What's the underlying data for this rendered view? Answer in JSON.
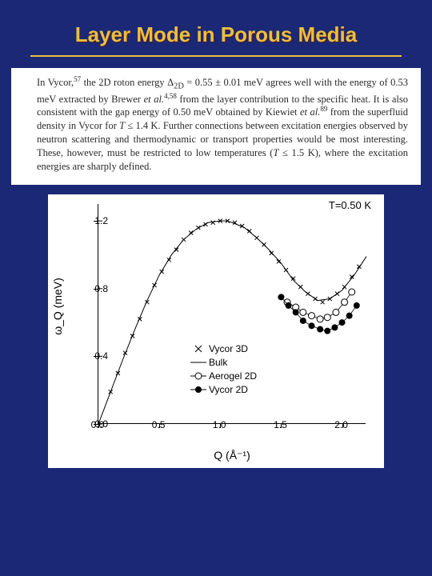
{
  "title": "Layer Mode in Porous Media",
  "paragraph_html": "In Vycor,<sup>57</sup> the 2D roton energy &Delta;<sub>2D</sub> = 0.55 &plusmn; 0.01 meV agrees well with the energy of 0.53 meV extracted by Brewer <i>et al.</i><sup>4,58</sup> from the layer contribution to the specific heat. It is also consistent with the gap energy of 0.50 meV obtained by Kiewiet <i>et al.</i><sup>89</sup> from the superfluid density in Vycor for <i>T</i> &le; 1.4 K. Further connections between excitation energies observed by neutron scattering and thermodynamic or transport properties would be most interesting. These, however, must be restricted to low temperatures (<i>T</i> &le; 1.5 K), where the excitation energies are sharply defined.",
  "chart": {
    "type": "scatter+line",
    "temp_label": "T=0.50 K",
    "xlabel": "Q  (Å⁻¹)",
    "ylabel": "ω_Q  (meV)",
    "xlim": [
      0.0,
      2.2
    ],
    "ylim": [
      0.0,
      1.3
    ],
    "xticks": [
      0.0,
      0.5,
      1.0,
      1.5,
      2.0
    ],
    "yticks": [
      0.0,
      0.4,
      0.8,
      1.2
    ],
    "background_color": "#ffffff",
    "axis_color": "#000000",
    "tick_fontsize": 12,
    "label_fontsize": 14,
    "legend": {
      "position": "lower-right-inner",
      "entries": [
        {
          "marker": "x",
          "label": "Vycor 3D"
        },
        {
          "marker": "line",
          "label": "Bulk"
        },
        {
          "marker": "open-circle",
          "label": "Aerogel 2D"
        },
        {
          "marker": "filled-circle",
          "label": "Vycor 2D"
        }
      ]
    },
    "series": {
      "bulk_line": {
        "style": "line",
        "color": "#000000",
        "width": 1.0,
        "points": [
          [
            0.0,
            0.0
          ],
          [
            0.1,
            0.19
          ],
          [
            0.2,
            0.38
          ],
          [
            0.3,
            0.56
          ],
          [
            0.4,
            0.73
          ],
          [
            0.5,
            0.88
          ],
          [
            0.6,
            1.0
          ],
          [
            0.7,
            1.09
          ],
          [
            0.8,
            1.15
          ],
          [
            0.9,
            1.19
          ],
          [
            1.0,
            1.2
          ],
          [
            1.05,
            1.2
          ],
          [
            1.1,
            1.19
          ],
          [
            1.2,
            1.16
          ],
          [
            1.3,
            1.1
          ],
          [
            1.4,
            1.03
          ],
          [
            1.5,
            0.95
          ],
          [
            1.6,
            0.85
          ],
          [
            1.7,
            0.78
          ],
          [
            1.8,
            0.73
          ],
          [
            1.9,
            0.74
          ],
          [
            2.0,
            0.79
          ],
          [
            2.1,
            0.88
          ],
          [
            2.2,
            0.99
          ]
        ]
      },
      "vycor3d": {
        "style": "x",
        "color": "#000000",
        "size": 5,
        "points": [
          [
            0.1,
            0.19
          ],
          [
            0.16,
            0.3
          ],
          [
            0.22,
            0.42
          ],
          [
            0.28,
            0.52
          ],
          [
            0.34,
            0.62
          ],
          [
            0.4,
            0.72
          ],
          [
            0.46,
            0.82
          ],
          [
            0.52,
            0.9
          ],
          [
            0.58,
            0.97
          ],
          [
            0.64,
            1.03
          ],
          [
            0.7,
            1.09
          ],
          [
            0.76,
            1.13
          ],
          [
            0.82,
            1.16
          ],
          [
            0.88,
            1.18
          ],
          [
            0.94,
            1.19
          ],
          [
            1.0,
            1.2
          ],
          [
            1.06,
            1.2
          ],
          [
            1.12,
            1.19
          ],
          [
            1.18,
            1.17
          ],
          [
            1.24,
            1.14
          ],
          [
            1.3,
            1.1
          ],
          [
            1.36,
            1.06
          ],
          [
            1.42,
            1.01
          ],
          [
            1.48,
            0.96
          ],
          [
            1.54,
            0.91
          ],
          [
            1.6,
            0.86
          ],
          [
            1.66,
            0.81
          ],
          [
            1.72,
            0.77
          ],
          [
            1.78,
            0.74
          ],
          [
            1.84,
            0.72
          ],
          [
            1.9,
            0.74
          ],
          [
            1.96,
            0.77
          ],
          [
            2.02,
            0.81
          ],
          [
            2.08,
            0.87
          ],
          [
            2.14,
            0.93
          ]
        ]
      },
      "aerogel2d": {
        "style": "open-circle",
        "color": "#000000",
        "size": 4,
        "points": [
          [
            1.55,
            0.72
          ],
          [
            1.62,
            0.69
          ],
          [
            1.68,
            0.66
          ],
          [
            1.75,
            0.64
          ],
          [
            1.82,
            0.62
          ],
          [
            1.88,
            0.63
          ],
          [
            1.95,
            0.66
          ],
          [
            2.02,
            0.72
          ],
          [
            2.08,
            0.78
          ]
        ]
      },
      "vycor2d": {
        "style": "filled-circle",
        "color": "#000000",
        "size": 4,
        "points": [
          [
            1.5,
            0.75
          ],
          [
            1.56,
            0.7
          ],
          [
            1.62,
            0.66
          ],
          [
            1.68,
            0.61
          ],
          [
            1.75,
            0.58
          ],
          [
            1.82,
            0.56
          ],
          [
            1.88,
            0.55
          ],
          [
            1.94,
            0.57
          ],
          [
            2.0,
            0.6
          ],
          [
            2.06,
            0.64
          ],
          [
            2.12,
            0.7
          ]
        ]
      }
    }
  }
}
